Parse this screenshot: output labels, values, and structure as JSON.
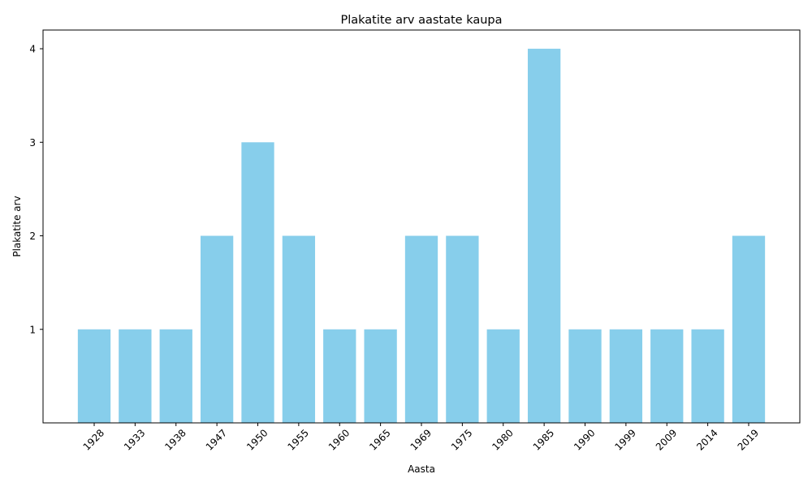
{
  "chart_data": {
    "type": "bar",
    "title": "Plakatite arv aastate kaupa",
    "xlabel": "Aasta",
    "ylabel": "Plakatite arv",
    "categories": [
      "1928",
      "1933",
      "1938",
      "1947",
      "1950",
      "1955",
      "1960",
      "1965",
      "1969",
      "1975",
      "1980",
      "1985",
      "1990",
      "1999",
      "2009",
      "2014",
      "2019"
    ],
    "values": [
      1,
      1,
      1,
      2,
      3,
      2,
      1,
      1,
      2,
      2,
      1,
      4,
      1,
      1,
      1,
      1,
      2
    ],
    "yticks": [
      "1",
      "2",
      "3",
      "4"
    ],
    "ylim": [
      0,
      4.2
    ],
    "bar_color": "#87ceeb",
    "grid": false,
    "xtick_rotation_deg": 45
  }
}
